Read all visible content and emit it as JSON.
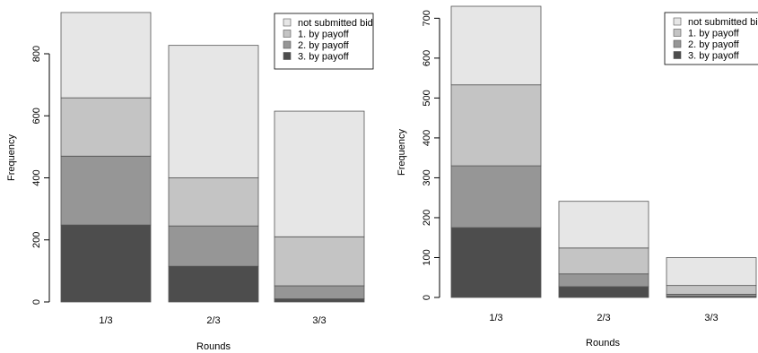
{
  "chart_data": [
    {
      "type": "bar",
      "stacked": true,
      "categories": [
        "1/3",
        "2/3",
        "3/3"
      ],
      "xlabel": "Rounds",
      "ylabel": "Frequency",
      "ylim": [
        0,
        930
      ],
      "yticks": [
        0,
        200,
        400,
        600,
        800
      ],
      "legend_position": "top-right",
      "series": [
        {
          "name": "3. by payoff",
          "color": "#4d4d4d",
          "values": [
            248,
            115,
            10
          ]
        },
        {
          "name": "2. by payoff",
          "color": "#969696",
          "values": [
            222,
            130,
            42
          ]
        },
        {
          "name": "1. by payoff",
          "color": "#c4c4c4",
          "values": [
            188,
            155,
            158
          ]
        },
        {
          "name": "not submitted bid",
          "color": "#e6e6e6",
          "values": [
            275,
            427,
            405
          ]
        }
      ]
    },
    {
      "type": "bar",
      "stacked": true,
      "categories": [
        "1/3",
        "2/3",
        "3/3"
      ],
      "xlabel": "Rounds",
      "ylabel": "Frequency",
      "ylim": [
        0,
        730
      ],
      "yticks": [
        0,
        100,
        200,
        300,
        400,
        500,
        600,
        700
      ],
      "legend_position": "top-right",
      "series": [
        {
          "name": "3. by payoff",
          "color": "#4d4d4d",
          "values": [
            175,
            27,
            3
          ]
        },
        {
          "name": "2. by payoff",
          "color": "#969696",
          "values": [
            155,
            32,
            5
          ]
        },
        {
          "name": "1. by payoff",
          "color": "#c4c4c4",
          "values": [
            203,
            65,
            22
          ]
        },
        {
          "name": "not submitted bid",
          "color": "#e6e6e6",
          "values": [
            197,
            117,
            70
          ]
        }
      ]
    }
  ]
}
